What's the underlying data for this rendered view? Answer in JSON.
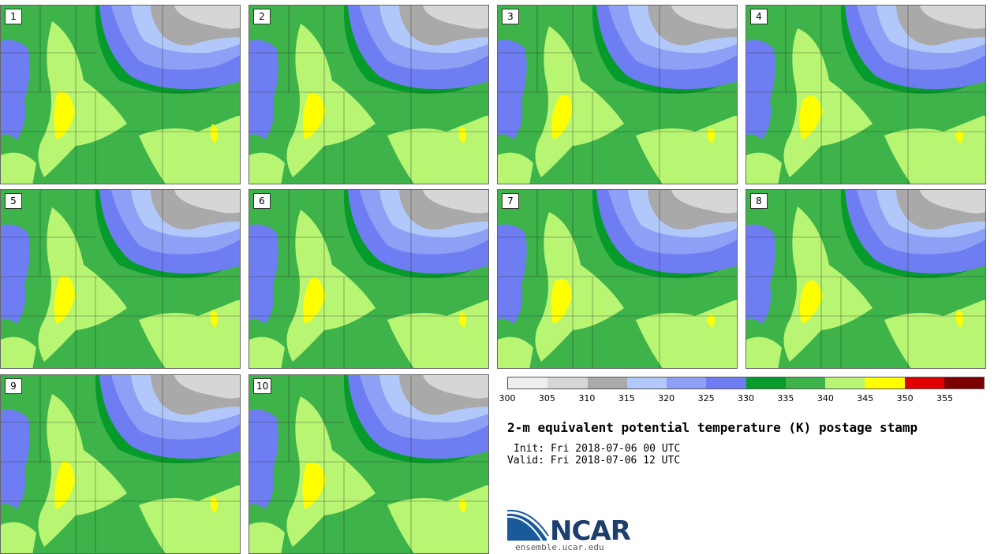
{
  "colors": {
    "c300": "#eeeeee",
    "c305": "#d6d6d6",
    "c310": "#a9a9a9",
    "c315": "#b3c8fa",
    "c320": "#8da0f5",
    "c325": "#6e7df2",
    "c330": "#069b2a",
    "c335": "#3db34a",
    "c340": "#b8f573",
    "c345": "#ffff00",
    "c350": "#e10000",
    "c355": "#7d0000"
  },
  "panels": [
    {
      "label": "1"
    },
    {
      "label": "2"
    },
    {
      "label": "3"
    },
    {
      "label": "4"
    },
    {
      "label": "5"
    },
    {
      "label": "6"
    },
    {
      "label": "7"
    },
    {
      "label": "8"
    },
    {
      "label": "9"
    },
    {
      "label": "10"
    }
  ],
  "colorbar": {
    "ticks": [
      "300",
      "305",
      "310",
      "315",
      "320",
      "325",
      "330",
      "335",
      "340",
      "345",
      "350",
      "355"
    ]
  },
  "title": "2-m equivalent potential temperature (K) postage stamp",
  "init": "Init: Fri 2018-07-06 00 UTC",
  "valid": "Valid: Fri 2018-07-06 12 UTC",
  "logo": {
    "text": "NCAR",
    "url": "ensemble.ucar.edu"
  }
}
